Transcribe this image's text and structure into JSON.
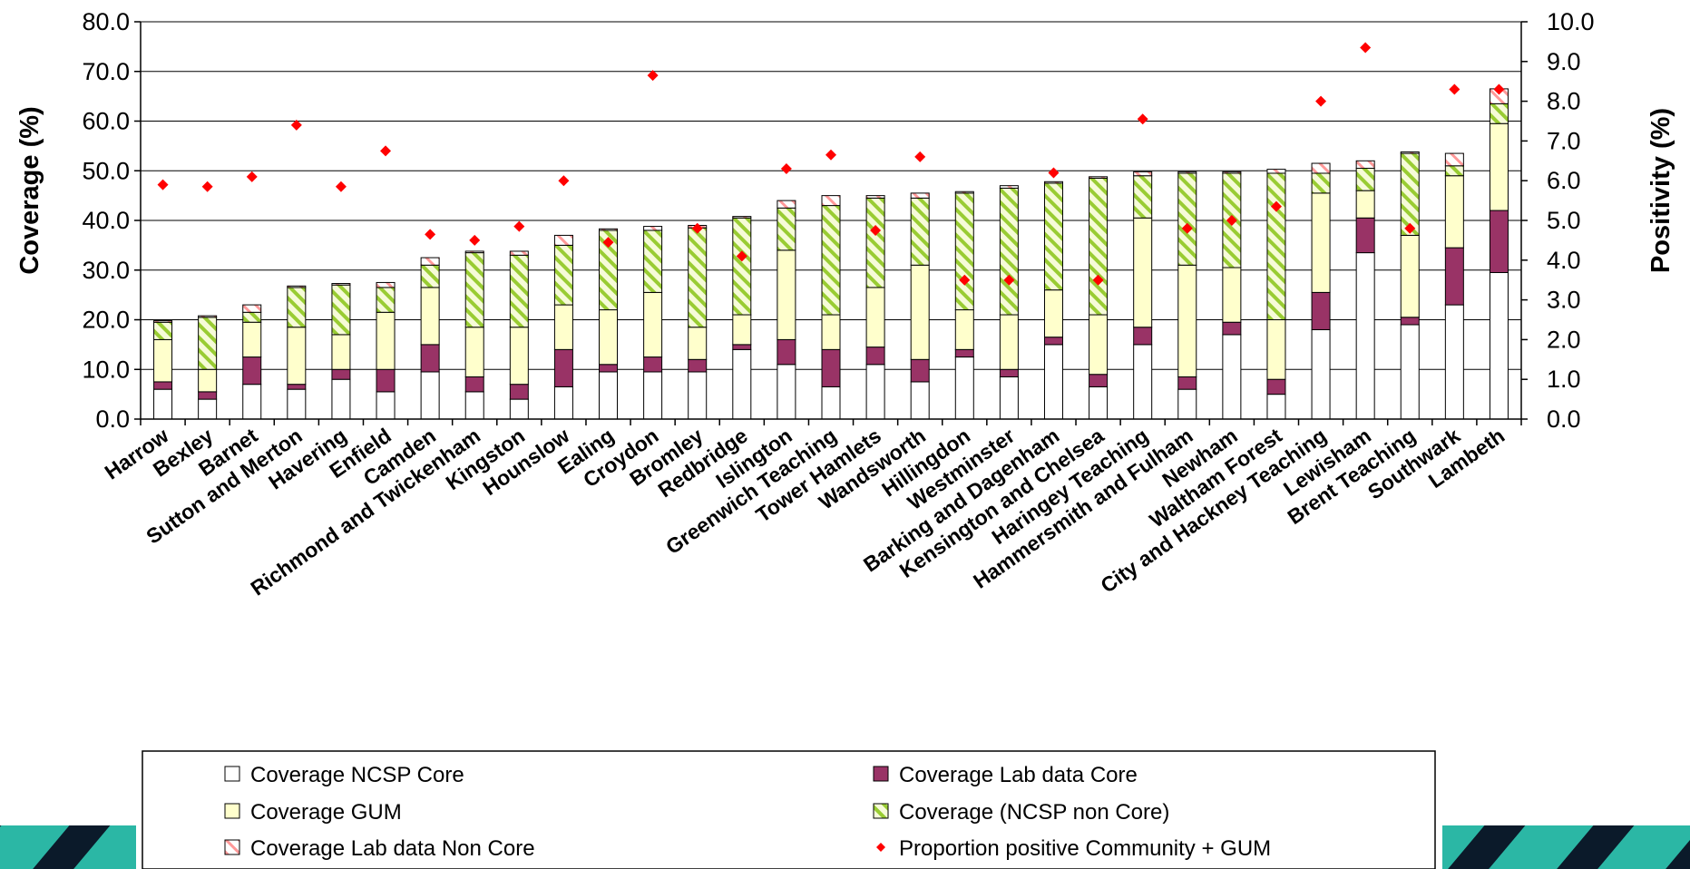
{
  "chart_data": {
    "type": "bar",
    "stacked": true,
    "ylabel": "Coverage (%)",
    "y2label": "Positivity (%)",
    "ylim": [
      0,
      80
    ],
    "y2lim": [
      0,
      10
    ],
    "yticks": [
      "0.0",
      "10.0",
      "20.0",
      "30.0",
      "40.0",
      "50.0",
      "60.0",
      "70.0",
      "80.0"
    ],
    "y2ticks": [
      "0.0",
      "1.0",
      "2.0",
      "3.0",
      "4.0",
      "5.0",
      "6.0",
      "7.0",
      "8.0",
      "9.0",
      "10.0"
    ],
    "grid": true,
    "legend_position": "bottom",
    "categories": [
      "Harrow",
      "Bexley",
      "Barnet",
      "Sutton and Merton",
      "Havering",
      "Enfield",
      "Camden",
      "Richmond and Twickenham",
      "Kingston",
      "Hounslow",
      "Ealing",
      "Croydon",
      "Bromley",
      "Redbridge",
      "Islington",
      "Greenwich Teaching",
      "Tower Hamlets",
      "Wandsworth",
      "Hillingdon",
      "Westminster",
      "Barking and Dagenham",
      "Kensington and Chelsea",
      "Haringey Teaching",
      "Hammersmith and Fulham",
      "Newham",
      "Waltham Forest",
      "City and Hackney Teaching",
      "Lewisham",
      "Brent Teaching",
      "Southwark",
      "Lambeth"
    ],
    "series": [
      {
        "name": "Coverage NCSP Core",
        "color": "#ffffff",
        "pattern": "solid",
        "values": [
          6.0,
          4.0,
          7.0,
          6.0,
          8.0,
          5.5,
          9.5,
          5.5,
          4.0,
          6.5,
          9.5,
          9.5,
          9.5,
          14.0,
          11.0,
          6.5,
          11.0,
          7.5,
          12.5,
          8.5,
          15.0,
          6.5,
          15.0,
          6.0,
          17.0,
          5.0,
          18.0,
          33.5,
          19.0,
          23.0,
          29.5
        ]
      },
      {
        "name": "Coverage Lab data Core",
        "color": "#993366",
        "pattern": "solid",
        "values": [
          1.5,
          1.5,
          5.5,
          1.0,
          2.0,
          4.5,
          5.5,
          3.0,
          3.0,
          7.5,
          1.5,
          3.0,
          2.5,
          1.0,
          5.0,
          7.5,
          3.5,
          4.5,
          1.5,
          1.5,
          1.5,
          2.5,
          3.5,
          2.5,
          2.5,
          3.0,
          7.5,
          7.0,
          1.5,
          11.5,
          12.5
        ]
      },
      {
        "name": "Coverage GUM",
        "color": "#ffffcc",
        "pattern": "solid",
        "values": [
          8.5,
          4.5,
          7.0,
          11.5,
          7.0,
          11.5,
          11.5,
          10.0,
          11.5,
          9.0,
          11.0,
          13.0,
          6.5,
          6.0,
          18.0,
          7.0,
          12.0,
          19.0,
          8.0,
          11.0,
          9.5,
          12.0,
          22.0,
          22.5,
          11.0,
          12.0,
          20.0,
          5.5,
          16.5,
          14.5,
          17.5
        ]
      },
      {
        "name": "Coverage (NCSP non Core)",
        "color": "#99cc33",
        "pattern": "hatch",
        "values": [
          3.5,
          10.5,
          2.0,
          8.0,
          10.0,
          5.0,
          4.5,
          15.0,
          14.5,
          12.0,
          16.0,
          12.5,
          20.0,
          19.5,
          8.5,
          22.0,
          18.0,
          13.5,
          23.5,
          25.5,
          21.5,
          27.5,
          8.5,
          18.5,
          19.0,
          29.5,
          4.0,
          4.5,
          16.5,
          2.0,
          4.0
        ]
      },
      {
        "name": "Coverage Lab data Non Core",
        "color": "#ff9999",
        "pattern": "hatch",
        "values": [
          0.3,
          0.3,
          1.5,
          0.3,
          0.3,
          1.0,
          1.5,
          0.3,
          0.8,
          2.0,
          0.3,
          0.8,
          0.5,
          0.3,
          1.5,
          2.0,
          0.5,
          1.0,
          0.3,
          0.5,
          0.3,
          0.3,
          0.8,
          0.3,
          0.3,
          0.8,
          2.0,
          1.5,
          0.3,
          2.5,
          3.0
        ]
      }
    ],
    "positivity": {
      "name": "Proportion positive Community + GUM",
      "color": "#ff0000",
      "axis": "right",
      "values": [
        5.9,
        5.85,
        6.1,
        7.4,
        5.85,
        6.75,
        4.65,
        4.5,
        4.85,
        6.0,
        4.45,
        8.65,
        4.8,
        4.1,
        6.3,
        6.65,
        4.75,
        6.6,
        3.5,
        3.5,
        6.2,
        3.5,
        7.55,
        4.8,
        5.0,
        5.35,
        8.0,
        9.35,
        4.8,
        8.3,
        8.3
      ]
    },
    "decor_colors": {
      "stripe_teal": "#2bb7a5",
      "stripe_dark": "#0b1a2a"
    }
  }
}
